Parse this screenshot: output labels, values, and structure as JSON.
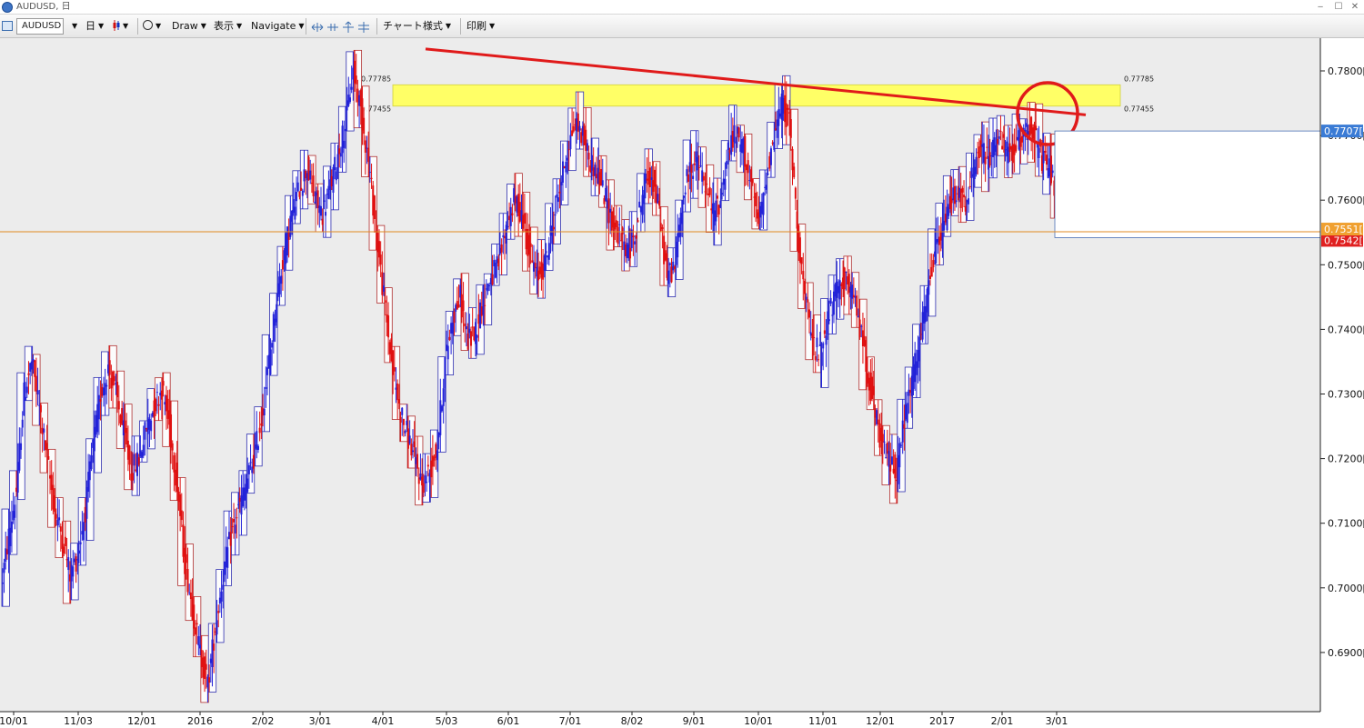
{
  "window": {
    "title": "AUDUSD, 日"
  },
  "toolbar": {
    "symbol": "AUDUSD",
    "timeframe": "日",
    "draw_label": "Draw",
    "view_label": "表示",
    "navigate_label": "Navigate",
    "chart_style_label": "チャート様式",
    "print_label": "印刷"
  },
  "colors": {
    "bull_candle": "#2323d8",
    "bear_candle": "#e01010",
    "trendline": "#e01a1a",
    "zone_fill": "#ffff66",
    "current_price_badge": "#f0a030",
    "high_badge": "#3a7bd5",
    "prev_close_badge": "#e02020"
  },
  "chart_data": {
    "type": "candlestick",
    "symbol": "AUDUSD",
    "timeframe": "Daily",
    "ylim": [
      0.681,
      0.786
    ],
    "price_axis_ticks": [
      "0.7800[0",
      "0.7700[0",
      "0.7600[0",
      "0.7500[0",
      "0.7400[0",
      "0.7300[0",
      "0.7200[0",
      "0.7100[0",
      "0.7000[0",
      "0.6900[0"
    ],
    "date_axis_ticks": [
      "10/01",
      "11/03",
      "12/01",
      "2016",
      "2/02",
      "3/01",
      "4/01",
      "5/03",
      "6/01",
      "7/01",
      "8/02",
      "9/01",
      "10/01",
      "11/01",
      "12/01",
      "2017",
      "2/01",
      "3/01"
    ],
    "weekly_close_path": [
      0.7,
      0.708,
      0.715,
      0.73,
      0.735,
      0.728,
      0.72,
      0.712,
      0.708,
      0.702,
      0.705,
      0.712,
      0.722,
      0.73,
      0.734,
      0.73,
      0.724,
      0.718,
      0.72,
      0.725,
      0.728,
      0.731,
      0.725,
      0.716,
      0.704,
      0.697,
      0.69,
      0.685,
      0.694,
      0.702,
      0.708,
      0.712,
      0.716,
      0.72,
      0.726,
      0.735,
      0.745,
      0.752,
      0.758,
      0.762,
      0.765,
      0.76,
      0.758,
      0.762,
      0.767,
      0.772,
      0.78,
      0.774,
      0.766,
      0.755,
      0.745,
      0.735,
      0.728,
      0.724,
      0.72,
      0.716,
      0.718,
      0.722,
      0.735,
      0.742,
      0.745,
      0.738,
      0.74,
      0.745,
      0.748,
      0.75,
      0.756,
      0.76,
      0.758,
      0.752,
      0.748,
      0.75,
      0.756,
      0.762,
      0.768,
      0.772,
      0.77,
      0.766,
      0.764,
      0.76,
      0.756,
      0.754,
      0.752,
      0.756,
      0.762,
      0.764,
      0.758,
      0.748,
      0.75,
      0.76,
      0.765,
      0.766,
      0.762,
      0.758,
      0.76,
      0.768,
      0.77,
      0.768,
      0.762,
      0.756,
      0.764,
      0.77,
      0.775,
      0.772,
      0.756,
      0.745,
      0.738,
      0.736,
      0.742,
      0.745,
      0.748,
      0.746,
      0.742,
      0.735,
      0.728,
      0.722,
      0.72,
      0.718,
      0.726,
      0.732,
      0.738,
      0.745,
      0.752,
      0.755,
      0.76,
      0.762,
      0.758,
      0.765,
      0.768,
      0.766,
      0.77,
      0.768,
      0.767,
      0.769,
      0.772,
      0.77,
      0.766,
      0.765,
      0.76,
      0.756
    ],
    "reference_levels": [
      {
        "label": "0.77785",
        "price": 0.77785
      },
      {
        "label": "0.77455",
        "price": 0.77455
      }
    ],
    "current_price": {
      "label": "0.7551[",
      "value": 0.7551
    },
    "line_high": {
      "label": "0.7707[",
      "value": 0.7707
    },
    "prev_close": {
      "label": "0.7542[",
      "value": 0.7542
    },
    "trendline": {
      "from_label": "4/01",
      "from_price": 0.7834,
      "to_label": "3/01",
      "to_price": 0.7732
    },
    "annotations": [
      "resistance zone 0.77455-0.77785",
      "descending trendline from April high",
      "circle at recent touch near 3/01"
    ]
  }
}
